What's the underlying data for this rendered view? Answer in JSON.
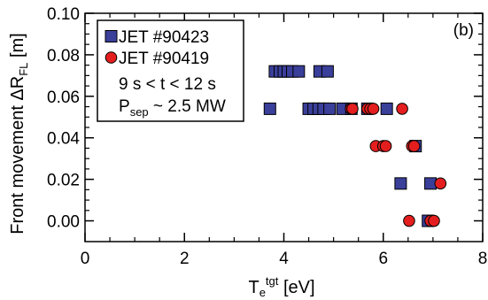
{
  "chart_data": {
    "type": "scatter",
    "panel_label": "(b)",
    "xlabel": {
      "base": "T",
      "sub": "e",
      "sup": "tgt",
      "unit": " [eV]"
    },
    "ylabel": {
      "text": "Front movement ΔR",
      "sub": "FL",
      "unit": " [m]"
    },
    "xlim": [
      0,
      8
    ],
    "ylim": [
      -0.01,
      0.1
    ],
    "xticks": [
      "0",
      "2",
      "4",
      "6",
      "8"
    ],
    "yticks": [
      "0.00",
      "0.02",
      "0.04",
      "0.06",
      "0.08",
      "0.10"
    ],
    "legend": {
      "placement": "top-left",
      "notes": [
        {
          "text": "9 s < t < 12 s"
        },
        {
          "base": "P",
          "sub": "sep",
          "rest": " ~ 2.5 MW"
        }
      ]
    },
    "series": [
      {
        "name": "JET #90423",
        "marker": "square",
        "color": "#3a3f9a",
        "points": [
          [
            3.82,
            0.072
          ],
          [
            3.92,
            0.072
          ],
          [
            4.0,
            0.072
          ],
          [
            4.08,
            0.072
          ],
          [
            4.17,
            0.072
          ],
          [
            4.3,
            0.072
          ],
          [
            4.72,
            0.072
          ],
          [
            4.88,
            0.072
          ],
          [
            3.72,
            0.054
          ],
          [
            4.5,
            0.054
          ],
          [
            4.6,
            0.054
          ],
          [
            4.7,
            0.054
          ],
          [
            4.8,
            0.054
          ],
          [
            4.92,
            0.054
          ],
          [
            5.18,
            0.054
          ],
          [
            5.36,
            0.054
          ],
          [
            5.68,
            0.054
          ],
          [
            6.07,
            0.054
          ],
          [
            6.65,
            0.036
          ],
          [
            6.35,
            0.018
          ],
          [
            6.95,
            0.018
          ],
          [
            6.9,
            0.0
          ]
        ]
      },
      {
        "name": "JET #90419",
        "marker": "circle",
        "color": "#e41e1e",
        "points": [
          [
            5.35,
            0.054
          ],
          [
            5.38,
            0.054
          ],
          [
            5.68,
            0.054
          ],
          [
            5.74,
            0.054
          ],
          [
            5.8,
            0.054
          ],
          [
            6.38,
            0.054
          ],
          [
            5.85,
            0.036
          ],
          [
            6.0,
            0.036
          ],
          [
            6.05,
            0.036
          ],
          [
            6.58,
            0.036
          ],
          [
            6.62,
            0.036
          ],
          [
            7.15,
            0.018
          ],
          [
            6.52,
            0.0
          ],
          [
            6.95,
            0.0
          ],
          [
            7.02,
            0.0
          ]
        ]
      }
    ]
  }
}
